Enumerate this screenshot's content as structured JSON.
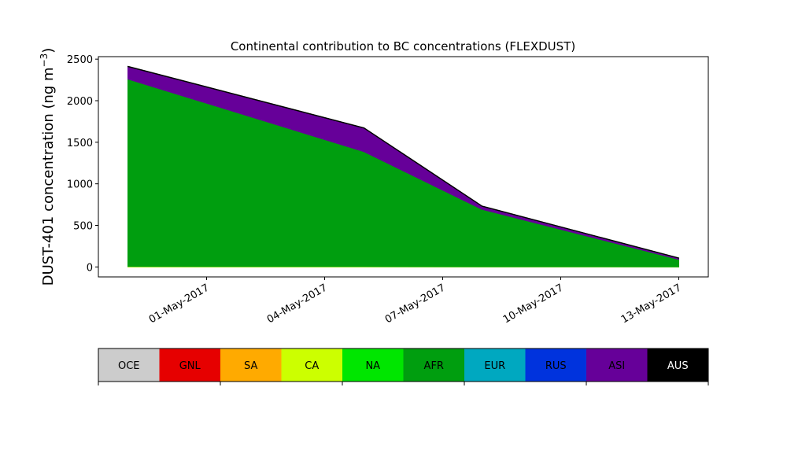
{
  "chart_data": {
    "type": "area",
    "title": "Continental contribution to BC concentrations (FLEXDUST)",
    "ylabel": "DUST-401 concentration (ng m",
    "ylabel_sup": "−3",
    "ylabel_close": ")",
    "xlabel": "",
    "x": [
      "2017-04-29",
      "2017-05-05",
      "2017-05-08",
      "2017-05-13"
    ],
    "x_tick_labels": [
      "01-May-2017",
      "04-May-2017",
      "07-May-2017",
      "10-May-2017",
      "13-May-2017"
    ],
    "x_tick_dates": [
      "2017-05-01",
      "2017-05-04",
      "2017-05-07",
      "2017-05-10",
      "2017-05-13"
    ],
    "xlim": [
      "2017-04-28T06:00",
      "2017-05-13T18:00"
    ],
    "ylim": [
      -120,
      2530
    ],
    "y_ticks": [
      0,
      500,
      1000,
      1500,
      2000,
      2500
    ],
    "stacked": true,
    "series": [
      {
        "name": "OCE",
        "color": "#cccccc",
        "values": [
          0,
          0,
          0,
          0
        ]
      },
      {
        "name": "GNL",
        "color": "#e60000",
        "values": [
          0,
          0,
          0,
          0
        ]
      },
      {
        "name": "SA",
        "color": "#ffaa00",
        "values": [
          0,
          0,
          0,
          0
        ]
      },
      {
        "name": "CA",
        "color": "#ccff00",
        "values": [
          5,
          4,
          2,
          1
        ]
      },
      {
        "name": "NA",
        "color": "#00e600",
        "values": [
          0,
          0,
          0,
          0
        ]
      },
      {
        "name": "AFR",
        "color": "#009e0f",
        "values": [
          2255,
          1383,
          690,
          90
        ]
      },
      {
        "name": "EUR",
        "color": "#00a8c0",
        "values": [
          0,
          0,
          0,
          0
        ]
      },
      {
        "name": "RUS",
        "color": "#0033dd",
        "values": [
          0,
          0,
          0,
          0
        ]
      },
      {
        "name": "ASI",
        "color": "#660099",
        "values": [
          150,
          283,
          38,
          15
        ]
      },
      {
        "name": "AUS",
        "color": "#000000",
        "values": [
          3,
          3,
          2,
          1
        ]
      }
    ],
    "legend": {
      "placement": "bottom",
      "items": [
        {
          "label": "OCE",
          "color": "#cccccc",
          "text_color": "#000000"
        },
        {
          "label": "GNL",
          "color": "#e60000",
          "text_color": "#000000"
        },
        {
          "label": "SA",
          "color": "#ffaa00",
          "text_color": "#000000"
        },
        {
          "label": "CA",
          "color": "#ccff00",
          "text_color": "#000000"
        },
        {
          "label": "NA",
          "color": "#00e600",
          "text_color": "#000000"
        },
        {
          "label": "AFR",
          "color": "#009e0f",
          "text_color": "#000000"
        },
        {
          "label": "EUR",
          "color": "#00a8c0",
          "text_color": "#000000"
        },
        {
          "label": "RUS",
          "color": "#0033dd",
          "text_color": "#000000"
        },
        {
          "label": "ASI",
          "color": "#660099",
          "text_color": "#000000"
        },
        {
          "label": "AUS",
          "color": "#000000",
          "text_color": "#ffffff"
        }
      ]
    },
    "grid": false
  }
}
